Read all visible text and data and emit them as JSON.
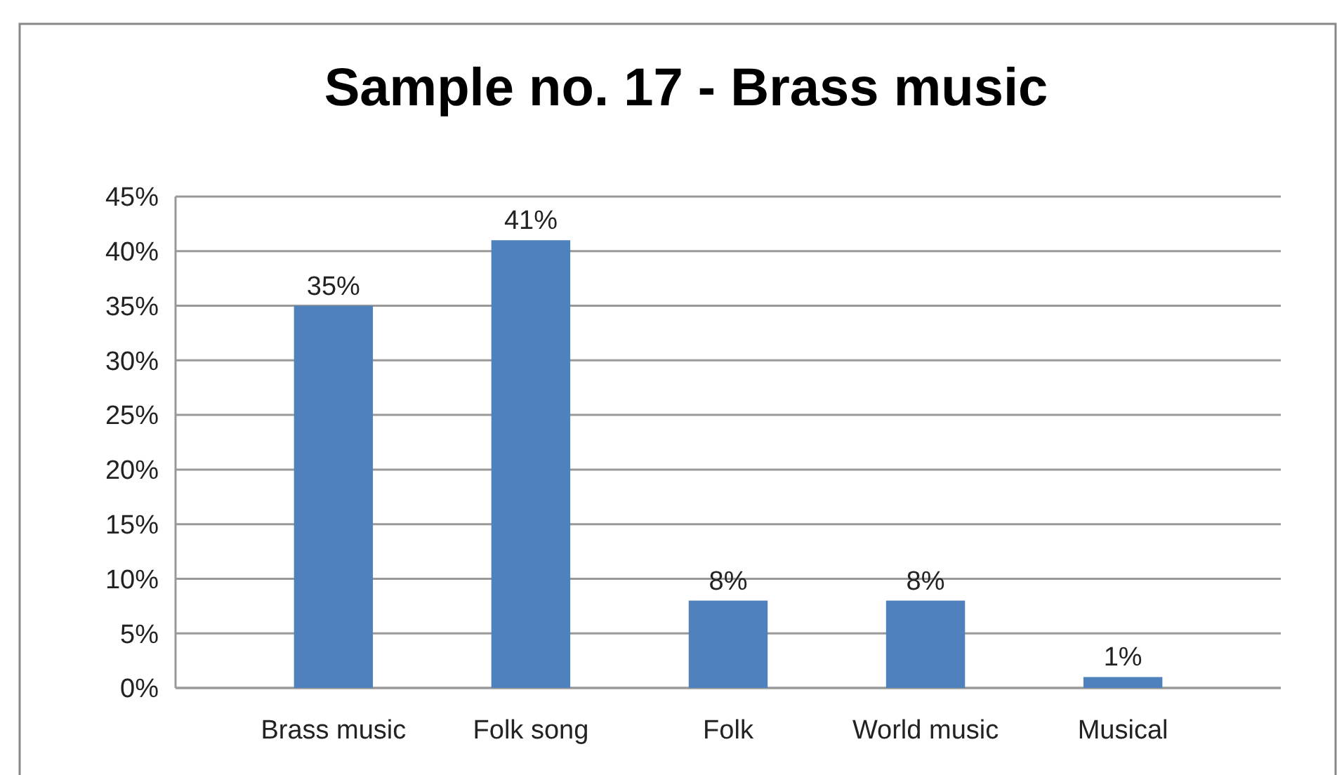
{
  "chart_data": {
    "type": "bar",
    "title": "Sample no. 17 - Brass music",
    "categories": [
      "Brass music",
      "Folk song",
      "Folk",
      "World music",
      "Musical"
    ],
    "values": [
      35,
      41,
      8,
      8,
      1
    ],
    "color": "#4f81bd",
    "value_labels": [
      "35%",
      "41%",
      "8%",
      "8%",
      "1%"
    ],
    "ylim": [
      0,
      45
    ],
    "yticks": [
      {
        "value": 0,
        "label": "0%"
      },
      {
        "value": 5,
        "label": "5%"
      },
      {
        "value": 10,
        "label": "10%"
      },
      {
        "value": 15,
        "label": "15%"
      },
      {
        "value": 20,
        "label": "20%"
      },
      {
        "value": 25,
        "label": "25%"
      },
      {
        "value": 30,
        "label": "30%"
      },
      {
        "value": 35,
        "label": "35%"
      },
      {
        "value": 40,
        "label": "40%"
      },
      {
        "value": 45,
        "label": "45%"
      }
    ],
    "grid": "y"
  }
}
